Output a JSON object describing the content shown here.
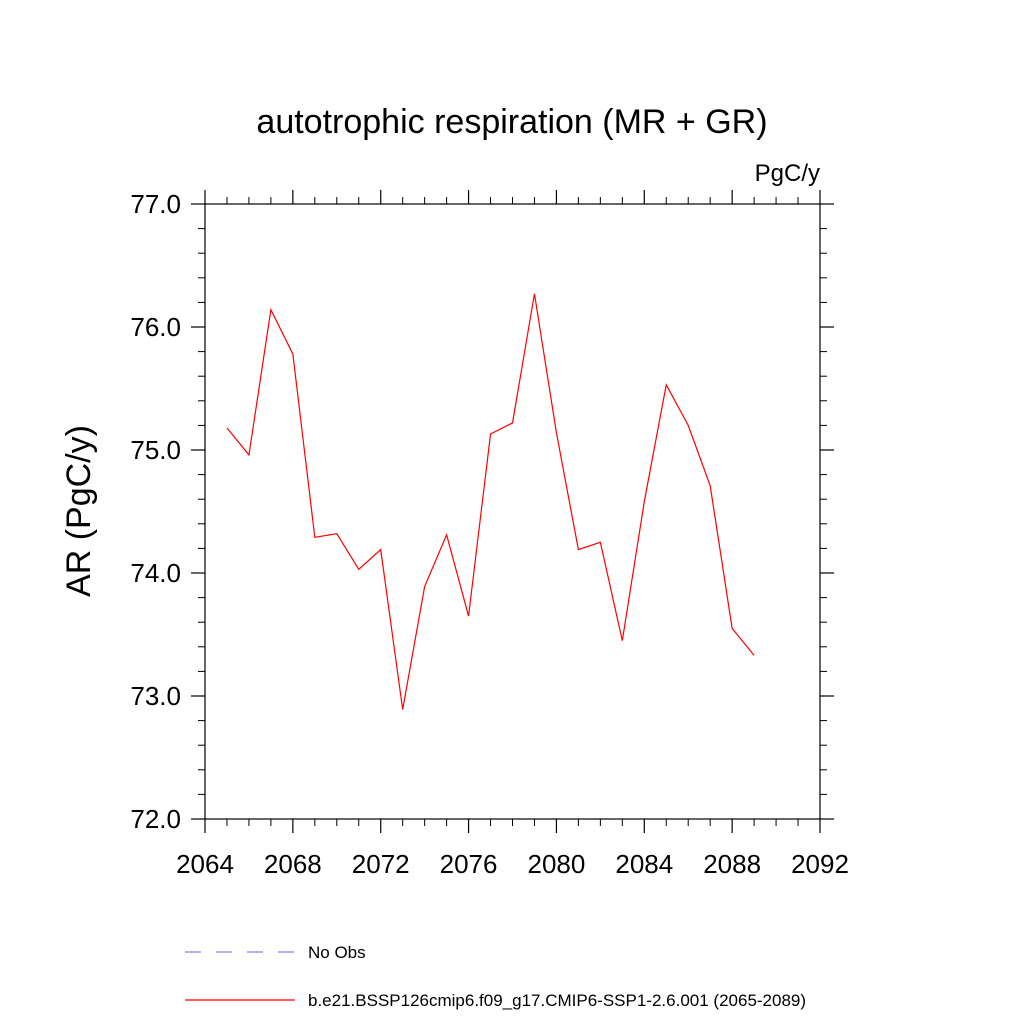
{
  "chart_data": {
    "type": "line",
    "title": "autotrophic respiration (MR + GR)",
    "units": "PgC/y",
    "xlabel": "",
    "ylabel": "AR  (PgC/y)",
    "xlim": [
      2064,
      2092
    ],
    "ylim": [
      72.0,
      77.0
    ],
    "x_ticks": [
      2064,
      2068,
      2072,
      2076,
      2080,
      2084,
      2088,
      2092
    ],
    "y_ticks": [
      72.0,
      73.0,
      74.0,
      75.0,
      76.0,
      77.0
    ],
    "x_tick_labels": [
      "2064",
      "2068",
      "2072",
      "2076",
      "2080",
      "2084",
      "2088",
      "2092"
    ],
    "y_tick_labels": [
      "72.0",
      "73.0",
      "74.0",
      "75.0",
      "76.0",
      "77.0"
    ],
    "x_minor_step": 1,
    "y_minor_step": 0.2,
    "grid": false,
    "legend_position": "bottom",
    "series": [
      {
        "name": "b.e21.BSSP126cmip6.f09_g17.CMIP6-SSP1-2.6.001 (2065-2089)",
        "color": "#ff0000",
        "style": "solid",
        "x": [
          2065,
          2066,
          2067,
          2068,
          2069,
          2070,
          2071,
          2072,
          2073,
          2074,
          2075,
          2076,
          2077,
          2078,
          2079,
          2080,
          2081,
          2082,
          2083,
          2084,
          2085,
          2086,
          2087,
          2088,
          2089
        ],
        "values": [
          75.18,
          74.96,
          76.14,
          75.78,
          74.29,
          74.32,
          74.03,
          74.19,
          72.89,
          73.89,
          74.31,
          73.65,
          75.13,
          75.22,
          76.27,
          75.14,
          74.19,
          74.25,
          73.45,
          74.58,
          75.53,
          75.2,
          74.71,
          73.55,
          73.33
        ]
      }
    ],
    "legend": [
      {
        "label": "No Obs",
        "color": "#8080ff",
        "style": "dashed"
      },
      {
        "label": "b.e21.BSSP126cmip6.f09_g17.CMIP6-SSP1-2.6.001 (2065-2089)",
        "color": "#ff0000",
        "style": "solid"
      }
    ]
  }
}
